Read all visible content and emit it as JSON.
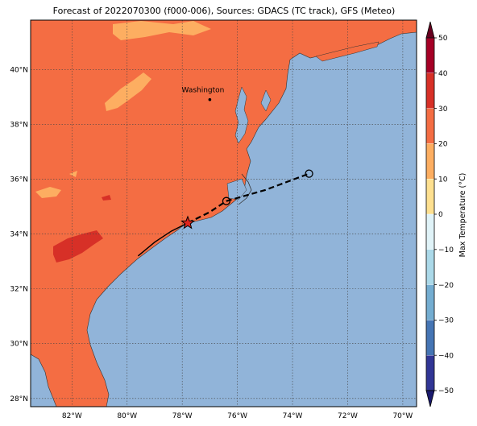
{
  "title": "Forecast of 2022070300 (f000-006), Sources: GDACS (TC track), GFS (Meteo)",
  "map": {
    "lon_range": [
      -83.5,
      -69.5
    ],
    "lat_range": [
      27.7,
      41.8
    ],
    "lon_ticks": [
      {
        "value": -82,
        "label": "82°W"
      },
      {
        "value": -80,
        "label": "80°W"
      },
      {
        "value": -78,
        "label": "78°W"
      },
      {
        "value": -76,
        "label": "76°W"
      },
      {
        "value": -74,
        "label": "74°W"
      },
      {
        "value": -72,
        "label": "72°W"
      },
      {
        "value": -70,
        "label": "70°W"
      }
    ],
    "lat_ticks": [
      {
        "value": 28,
        "label": "28°N"
      },
      {
        "value": 30,
        "label": "30°N"
      },
      {
        "value": 32,
        "label": "32°N"
      },
      {
        "value": 34,
        "label": "34°N"
      },
      {
        "value": 36,
        "label": "36°N"
      },
      {
        "value": 38,
        "label": "38°N"
      },
      {
        "value": 40,
        "label": "40°N"
      }
    ],
    "gridlines": true,
    "ocean_color": "#91b4d9",
    "city": {
      "name": "Washington",
      "lon": -77.0,
      "lat": 38.9
    },
    "track_observed": [
      [
        -79.6,
        33.2
      ],
      [
        -79.0,
        33.7
      ],
      [
        -78.4,
        34.1
      ],
      [
        -77.8,
        34.4
      ]
    ],
    "track_forecast": [
      [
        -77.8,
        34.4
      ],
      [
        -77.0,
        34.8
      ],
      [
        -76.4,
        35.2
      ],
      [
        -75.0,
        35.6
      ],
      [
        -73.4,
        36.2
      ]
    ],
    "storm_position": {
      "lon": -77.8,
      "lat": 34.4,
      "color": "#e0241c"
    },
    "forecast_points": [
      {
        "lon": -76.4,
        "lat": 35.2
      },
      {
        "lon": -73.4,
        "lat": 36.2
      }
    ]
  },
  "colorbar": {
    "label": "Max Temperature (°C)",
    "ticks": [
      "50",
      "40",
      "30",
      "20",
      "10",
      "0",
      "−10",
      "−20",
      "−30",
      "−40",
      "−50"
    ],
    "bands": [
      {
        "from": 40,
        "to": 50,
        "color": "#a50026"
      },
      {
        "from": 30,
        "to": 40,
        "color": "#d73027"
      },
      {
        "from": 20,
        "to": 30,
        "color": "#f46d43"
      },
      {
        "from": 10,
        "to": 20,
        "color": "#fdae61"
      },
      {
        "from": 0,
        "to": 10,
        "color": "#fee090"
      },
      {
        "from": -10,
        "to": 0,
        "color": "#e0f3f8"
      },
      {
        "from": -20,
        "to": -10,
        "color": "#abd9e9"
      },
      {
        "from": -30,
        "to": -20,
        "color": "#74add1"
      },
      {
        "from": -40,
        "to": -30,
        "color": "#4575b4"
      },
      {
        "from": -50,
        "to": -40,
        "color": "#313695"
      }
    ],
    "colors": {
      "over": "#67001f",
      "under": "#1a1a6e"
    }
  },
  "chart_data": {
    "type": "heatmap",
    "title": "Forecast of 2022070300 (f000-006), Sources: GDACS (TC track), GFS (Meteo)",
    "xlabel": "",
    "ylabel": "",
    "colorbar_label": "Max Temperature (°C)",
    "colorbar_range": [
      -50,
      50
    ],
    "land_temperature_band": "20 to 30",
    "warm_patches_band": "30 to 40",
    "cool_patches_band": "10 to 20"
  }
}
